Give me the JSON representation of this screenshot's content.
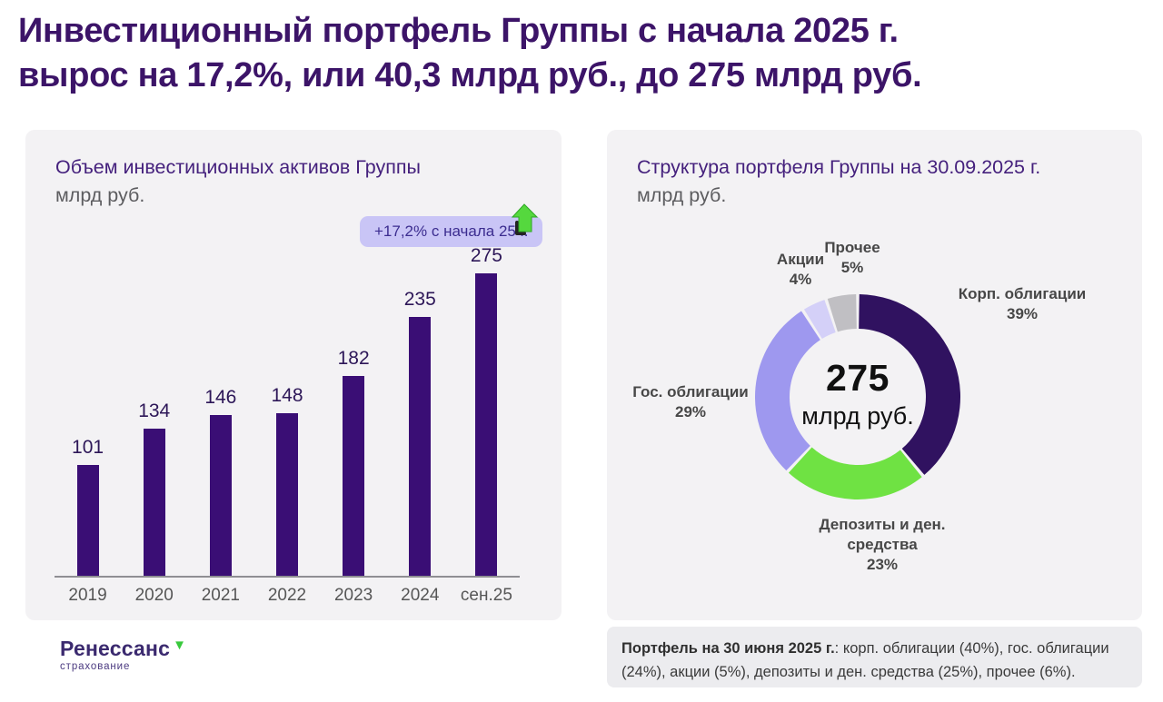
{
  "page": {
    "title_line1": "Инвестиционный портфель Группы с начала 2025 г.",
    "title_line2": "вырос на 17,2%, или 40,3 млрд руб., до 275 млрд руб."
  },
  "left_panel": {
    "title": "Объем инвестиционных активов Группы",
    "subtitle": "млрд руб.",
    "badge_label": "+17,2% с начала 25 г.",
    "badge_icon": "green-up-arrow"
  },
  "right_panel": {
    "title": "Структура портфеля Группы на 30.09.2025 г.",
    "subtitle": "млрд руб.",
    "center_value": "275",
    "center_unit": "млрд руб."
  },
  "footnote": {
    "bold": "Портфель на 30 июня 2025 г.",
    "text": ": корп. облигации (40%), гос. облигации (24%), акции (5%), депозиты и ден. средства (25%), прочее (6%)."
  },
  "logo": {
    "name": "Ренессанс",
    "sub": "страхование",
    "triangle_icon": "green-down-triangle"
  },
  "colors": {
    "title_purple": "#3c1468",
    "panel_bg": "#f3f2f4",
    "bar_purple": "#3a0e75",
    "donut_dark_purple": "#301260",
    "donut_green": "#6fe243",
    "donut_lavender": "#9e98ef",
    "donut_light_lavender": "#d4d0f8",
    "donut_gray": "#c0bfc3",
    "badge_bg": "#c9c5f6",
    "badge_arrow_green": "#55d83e"
  },
  "chart_data": [
    {
      "type": "bar",
      "title": "Объем инвестиционных активов Группы",
      "ylabel": "млрд руб.",
      "categories": [
        "2019",
        "2020",
        "2021",
        "2022",
        "2023",
        "2024",
        "сен.25"
      ],
      "values": [
        101,
        134,
        146,
        148,
        182,
        235,
        275
      ],
      "bar_color": "#3a0e75",
      "annotation": "+17,2% с начала 25 г.",
      "ylim": [
        0,
        326
      ],
      "grid": false,
      "value_labels": true
    },
    {
      "type": "pie",
      "subtype": "donut",
      "title": "Структура портфеля Группы на 30.09.2025 г.",
      "unit": "млрд руб.",
      "center_label": "275 млрд руб.",
      "start_angle_deg": -90,
      "direction": "clockwise",
      "segments": [
        {
          "label": "Корп. облигации",
          "pct": 39,
          "pct_label": "39%",
          "color": "#301260"
        },
        {
          "label": "Депозиты и ден. средства",
          "pct": 23,
          "pct_label": "23%",
          "color": "#6fe243"
        },
        {
          "label": "Гос. облигации",
          "pct": 29,
          "pct_label": "29%",
          "color": "#9e98ef"
        },
        {
          "label": "Акции",
          "pct": 4,
          "pct_label": "4%",
          "color": "#d4d0f8"
        },
        {
          "label": "Прочее",
          "pct": 5,
          "pct_label": "5%",
          "color": "#c0bfc3"
        }
      ]
    }
  ]
}
